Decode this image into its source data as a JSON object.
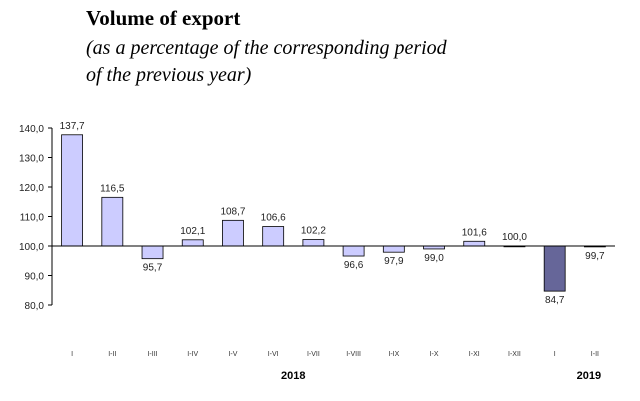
{
  "title": "Volume of export",
  "subtitle": "(as a percentage of the corresponding period\n of the previous year)",
  "chart_data": {
    "type": "bar",
    "title": "Volume of export",
    "subtitle": "(as a percentage of the corresponding period of the previous year)",
    "baseline": 100,
    "ylim": [
      80,
      140
    ],
    "yticks": [
      "140,0",
      "130,0",
      "120,0",
      "110,0",
      "100,0",
      "90,0",
      "80,0"
    ],
    "categories": [
      "I",
      "I-II",
      "I-III",
      "I-IV",
      "I-V",
      "I-VI",
      "I-VII",
      "I-VIII",
      "I-IX",
      "I-X",
      "I-XI",
      "I-XII",
      "I",
      "I-II"
    ],
    "values": [
      137.7,
      116.5,
      95.7,
      102.1,
      108.7,
      106.6,
      102.2,
      96.6,
      97.9,
      99.0,
      101.6,
      100.0,
      84.7,
      99.7
    ],
    "value_labels": [
      "137,7",
      "116,5",
      "95,7",
      "102,1",
      "108,7",
      "106,6",
      "102,2",
      "96,6",
      "97,9",
      "99,0",
      "101,6",
      "100,0",
      "84,7",
      "99,7"
    ],
    "year_groups": [
      {
        "label": "2018",
        "categories": [
          "I",
          "I-II",
          "I-III",
          "I-IV",
          "I-V",
          "I-VI",
          "I-VII",
          "I-VIII",
          "I-IX",
          "I-X",
          "I-XI",
          "I-XII"
        ]
      },
      {
        "label": "2019",
        "categories": [
          "I",
          "I-II"
        ]
      }
    ],
    "colors": {
      "2018": "#ccccff",
      "2019": "#666699",
      "border": "#000000"
    },
    "grid": false,
    "xlabel": "",
    "ylabel": ""
  }
}
